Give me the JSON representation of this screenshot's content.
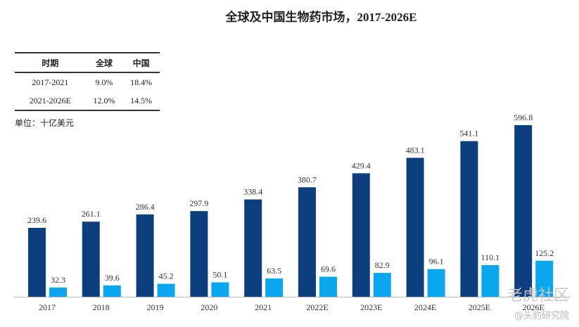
{
  "chart_data": {
    "type": "bar",
    "title": "全球及中国生物药市场，2017-2026E",
    "unit": "单位：十亿美元",
    "categories": [
      "2017",
      "2018",
      "2019",
      "2020",
      "2021",
      "2022E",
      "2023E",
      "2024E",
      "2025E",
      "2026E"
    ],
    "series": [
      {
        "values": [
          239.6,
          261.1,
          286.4,
          297.9,
          338.4,
          380.7,
          429.4,
          483.1,
          541.1,
          596.8
        ],
        "color": "#0d3f7f"
      },
      {
        "values": [
          32.3,
          39.6,
          45.2,
          50.1,
          63.5,
          69.6,
          82.9,
          96.1,
          110.1,
          125.2
        ],
        "color": "#0aa6ee"
      }
    ],
    "grid": false,
    "table": {
      "headers": [
        "时期",
        "全球",
        "中国"
      ],
      "rows": [
        [
          "2017-2021",
          "9.0%",
          "18.4%"
        ],
        [
          "2021-2026E",
          "12.0%",
          "14.5%"
        ]
      ]
    }
  },
  "watermark": {
    "logo": "老虎社区",
    "sub": "@头豹研究院"
  }
}
